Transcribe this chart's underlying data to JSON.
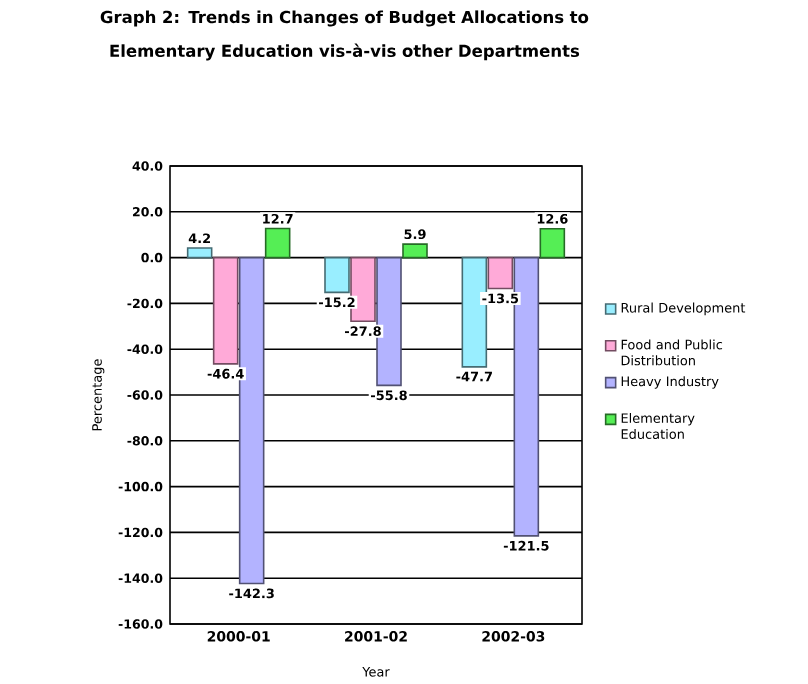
{
  "chart_data": {
    "type": "bar",
    "title": "Graph 2: Trends in Changes of Budget Allocations to Elementary Education vis-à-vis other Departments",
    "xlabel": "Year",
    "ylabel": "Percentage",
    "categories": [
      "2000-01",
      "2001-02",
      "2002-03"
    ],
    "series": [
      {
        "name": "Rural Development",
        "color": "#99eeff",
        "values": [
          4.2,
          -15.2,
          -47.7
        ]
      },
      {
        "name": "Food and Public Distribution",
        "color": "#ffaad8",
        "values": [
          -46.4,
          -27.8,
          -13.5
        ]
      },
      {
        "name": "Heavy Industry",
        "color": "#b3b3ff",
        "values": [
          -142.3,
          -55.8,
          -121.5
        ]
      },
      {
        "name": "Elementary Education",
        "color": "#55ee55",
        "values": [
          12.7,
          5.9,
          12.6
        ]
      }
    ],
    "ylim": [
      -160,
      40
    ],
    "yticks": [
      {
        "value": -160,
        "label": "-160.0"
      },
      {
        "value": -140,
        "label": "-140.0"
      },
      {
        "value": -120,
        "label": "-120.0"
      },
      {
        "value": -100,
        "label": "-100.0"
      },
      {
        "value": -80,
        "label": "-80.0"
      },
      {
        "value": -60,
        "label": "-60.0"
      },
      {
        "value": -40,
        "label": "-40.0"
      },
      {
        "value": -20,
        "label": "-20.0"
      },
      {
        "value": 0,
        "label": "0.0"
      },
      {
        "value": 20,
        "label": "20.0"
      },
      {
        "value": 40,
        "label": "40.0"
      }
    ],
    "grid": "y",
    "legend": "right",
    "data_labels": true
  }
}
